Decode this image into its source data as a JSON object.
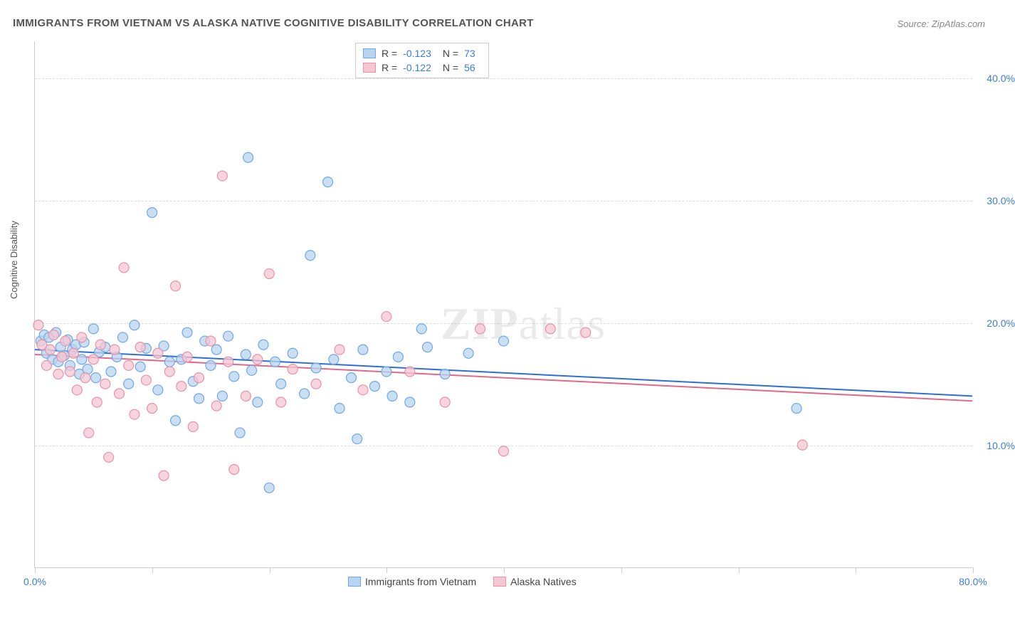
{
  "title": "IMMIGRANTS FROM VIETNAM VS ALASKA NATIVE COGNITIVE DISABILITY CORRELATION CHART",
  "source": "Source: ZipAtlas.com",
  "watermark_bold": "ZIP",
  "watermark_light": "atlas",
  "y_axis_label": "Cognitive Disability",
  "chart": {
    "type": "scatter",
    "xlim": [
      0,
      80
    ],
    "ylim": [
      0,
      43
    ],
    "x_ticks": [
      0,
      10,
      20,
      30,
      40,
      50,
      60,
      70,
      80
    ],
    "x_tick_labels": {
      "0": "0.0%",
      "80": "80.0%"
    },
    "y_grid": [
      10,
      20,
      30,
      40
    ],
    "y_tick_labels": {
      "10": "10.0%",
      "20": "20.0%",
      "30": "30.0%",
      "40": "40.0%"
    },
    "background_color": "#ffffff",
    "grid_color": "#dddddd",
    "axis_color": "#cccccc",
    "tick_label_color": "#3b7dd8",
    "marker_radius": 7,
    "marker_stroke_width": 1.2,
    "series": [
      {
        "name": "Immigrants from Vietnam",
        "fill": "#b8d4f0",
        "stroke": "#6fa8e6",
        "fill_opacity": 0.75,
        "R": "-0.123",
        "N": "73",
        "trend": {
          "x1": 0,
          "y1": 17.8,
          "x2": 80,
          "y2": 14.0,
          "color": "#2e6fd6",
          "width": 2
        },
        "points": [
          [
            0.5,
            18.5
          ],
          [
            0.8,
            19.0
          ],
          [
            1.0,
            17.5
          ],
          [
            1.2,
            18.8
          ],
          [
            1.5,
            17.0
          ],
          [
            1.8,
            19.2
          ],
          [
            2.0,
            16.8
          ],
          [
            2.2,
            18.0
          ],
          [
            2.5,
            17.3
          ],
          [
            2.8,
            18.6
          ],
          [
            3.0,
            16.5
          ],
          [
            3.2,
            17.8
          ],
          [
            3.5,
            18.2
          ],
          [
            3.8,
            15.8
          ],
          [
            4.0,
            17.0
          ],
          [
            4.2,
            18.4
          ],
          [
            4.5,
            16.2
          ],
          [
            5.0,
            19.5
          ],
          [
            5.2,
            15.5
          ],
          [
            5.5,
            17.6
          ],
          [
            6.0,
            18.0
          ],
          [
            6.5,
            16.0
          ],
          [
            7.0,
            17.2
          ],
          [
            7.5,
            18.8
          ],
          [
            8.0,
            15.0
          ],
          [
            8.5,
            19.8
          ],
          [
            9.0,
            16.4
          ],
          [
            9.5,
            17.9
          ],
          [
            10.0,
            29.0
          ],
          [
            10.5,
            14.5
          ],
          [
            11.0,
            18.1
          ],
          [
            11.5,
            16.8
          ],
          [
            12.0,
            12.0
          ],
          [
            12.5,
            17.0
          ],
          [
            13.0,
            19.2
          ],
          [
            13.5,
            15.2
          ],
          [
            14.0,
            13.8
          ],
          [
            14.5,
            18.5
          ],
          [
            15.0,
            16.5
          ],
          [
            15.5,
            17.8
          ],
          [
            16.0,
            14.0
          ],
          [
            16.5,
            18.9
          ],
          [
            17.0,
            15.6
          ],
          [
            17.5,
            11.0
          ],
          [
            18.0,
            17.4
          ],
          [
            18.2,
            33.5
          ],
          [
            18.5,
            16.1
          ],
          [
            19.0,
            13.5
          ],
          [
            19.5,
            18.2
          ],
          [
            20.0,
            6.5
          ],
          [
            20.5,
            16.8
          ],
          [
            21.0,
            15.0
          ],
          [
            22.0,
            17.5
          ],
          [
            23.0,
            14.2
          ],
          [
            23.5,
            25.5
          ],
          [
            24.0,
            16.3
          ],
          [
            25.0,
            31.5
          ],
          [
            25.5,
            17.0
          ],
          [
            26.0,
            13.0
          ],
          [
            27.0,
            15.5
          ],
          [
            27.5,
            10.5
          ],
          [
            28.0,
            17.8
          ],
          [
            29.0,
            14.8
          ],
          [
            30.0,
            16.0
          ],
          [
            31.0,
            17.2
          ],
          [
            32.0,
            13.5
          ],
          [
            33.0,
            19.5
          ],
          [
            33.5,
            18.0
          ],
          [
            35.0,
            15.8
          ],
          [
            37.0,
            17.5
          ],
          [
            40.0,
            18.5
          ],
          [
            65.0,
            13.0
          ],
          [
            30.5,
            14.0
          ]
        ]
      },
      {
        "name": "Alaska Natives",
        "fill": "#f6c7d3",
        "stroke": "#e892aa",
        "fill_opacity": 0.75,
        "R": "-0.122",
        "N": "56",
        "trend": {
          "x1": 0,
          "y1": 17.4,
          "x2": 80,
          "y2": 13.6,
          "color": "#e06a8a",
          "width": 2
        },
        "points": [
          [
            0.3,
            19.8
          ],
          [
            0.6,
            18.2
          ],
          [
            1.0,
            16.5
          ],
          [
            1.3,
            17.8
          ],
          [
            1.6,
            19.0
          ],
          [
            2.0,
            15.8
          ],
          [
            2.3,
            17.2
          ],
          [
            2.6,
            18.5
          ],
          [
            3.0,
            16.0
          ],
          [
            3.3,
            17.5
          ],
          [
            3.6,
            14.5
          ],
          [
            4.0,
            18.8
          ],
          [
            4.3,
            15.5
          ],
          [
            4.6,
            11.0
          ],
          [
            5.0,
            17.0
          ],
          [
            5.3,
            13.5
          ],
          [
            5.6,
            18.2
          ],
          [
            6.0,
            15.0
          ],
          [
            6.3,
            9.0
          ],
          [
            6.8,
            17.8
          ],
          [
            7.2,
            14.2
          ],
          [
            7.6,
            24.5
          ],
          [
            8.0,
            16.5
          ],
          [
            8.5,
            12.5
          ],
          [
            9.0,
            18.0
          ],
          [
            9.5,
            15.3
          ],
          [
            10.0,
            13.0
          ],
          [
            10.5,
            17.5
          ],
          [
            11.0,
            7.5
          ],
          [
            11.5,
            16.0
          ],
          [
            12.0,
            23.0
          ],
          [
            12.5,
            14.8
          ],
          [
            13.0,
            17.2
          ],
          [
            13.5,
            11.5
          ],
          [
            14.0,
            15.5
          ],
          [
            15.0,
            18.5
          ],
          [
            15.5,
            13.2
          ],
          [
            16.0,
            32.0
          ],
          [
            16.5,
            16.8
          ],
          [
            17.0,
            8.0
          ],
          [
            18.0,
            14.0
          ],
          [
            19.0,
            17.0
          ],
          [
            20.0,
            24.0
          ],
          [
            21.0,
            13.5
          ],
          [
            22.0,
            16.2
          ],
          [
            24.0,
            15.0
          ],
          [
            26.0,
            17.8
          ],
          [
            28.0,
            14.5
          ],
          [
            30.0,
            20.5
          ],
          [
            32.0,
            16.0
          ],
          [
            35.0,
            13.5
          ],
          [
            38.0,
            19.5
          ],
          [
            40.0,
            9.5
          ],
          [
            44.0,
            19.5
          ],
          [
            47.0,
            19.2
          ],
          [
            65.5,
            10.0
          ]
        ]
      }
    ]
  },
  "legend_bottom": [
    {
      "label": "Immigrants from Vietnam",
      "fill": "#b8d4f0",
      "stroke": "#6fa8e6"
    },
    {
      "label": "Alaska Natives",
      "fill": "#f6c7d3",
      "stroke": "#e892aa"
    }
  ]
}
